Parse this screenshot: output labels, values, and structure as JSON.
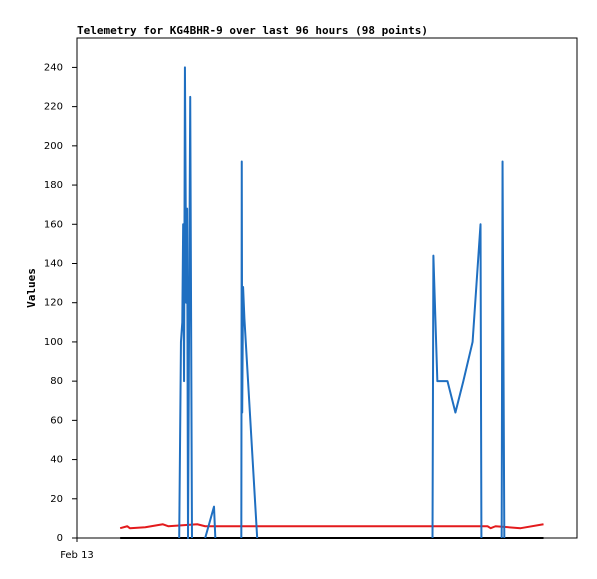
{
  "chart_data": {
    "type": "line",
    "title": "Telemetry for KG4BHR-9 over last 96 hours (98 points)",
    "y_label": "Values",
    "xlim": [
      0,
      113.5
    ],
    "xticks": [
      {
        "value": 0,
        "label": "Feb 13"
      }
    ],
    "ylim": [
      0,
      255
    ],
    "yticks": [
      0,
      20,
      40,
      60,
      80,
      100,
      120,
      140,
      160,
      180,
      200,
      220,
      240
    ],
    "grid": false,
    "series": [
      {
        "color": "#000000",
        "x": [
          9.8,
          105.9
        ],
        "values": [
          0,
          0
        ]
      },
      {
        "color": "#e31a1c",
        "x": [
          9.8,
          11.4,
          12.0,
          15.5,
          19.5,
          20.7,
          27.3,
          29.1,
          93.2,
          93.9,
          95.0,
          100.7,
          105.9
        ],
        "values": [
          5,
          6,
          5,
          5.5,
          7,
          6,
          7,
          6,
          6,
          5,
          6,
          5,
          7
        ]
      },
      {
        "color": "#1f6fc1",
        "x": [
          23.2,
          23.4,
          23.6,
          23.9,
          24.1,
          24.3,
          24.5,
          24.8,
          25.0,
          25.2,
          25.7,
          25.9,
          26.1,
          null,
          29.1,
          31.1,
          31.4,
          null,
          37.3,
          37.4,
          37.5,
          37.7,
          38.0,
          40.9,
          null,
          80.7,
          80.9,
          81.8,
          84.1,
          85.9,
          87.7,
          89.8,
          91.6,
          91.8,
          null,
          96.4,
          96.6,
          96.8,
          97.0
        ],
        "values": [
          0,
          50,
          100,
          110,
          160,
          80,
          240,
          120,
          168,
          0,
          225,
          112,
          0,
          null,
          0,
          16,
          0,
          null,
          0,
          192,
          64,
          128,
          112,
          0,
          null,
          0,
          144,
          80,
          80,
          64,
          80,
          100,
          160,
          0,
          null,
          0,
          192,
          96,
          0
        ]
      }
    ]
  }
}
